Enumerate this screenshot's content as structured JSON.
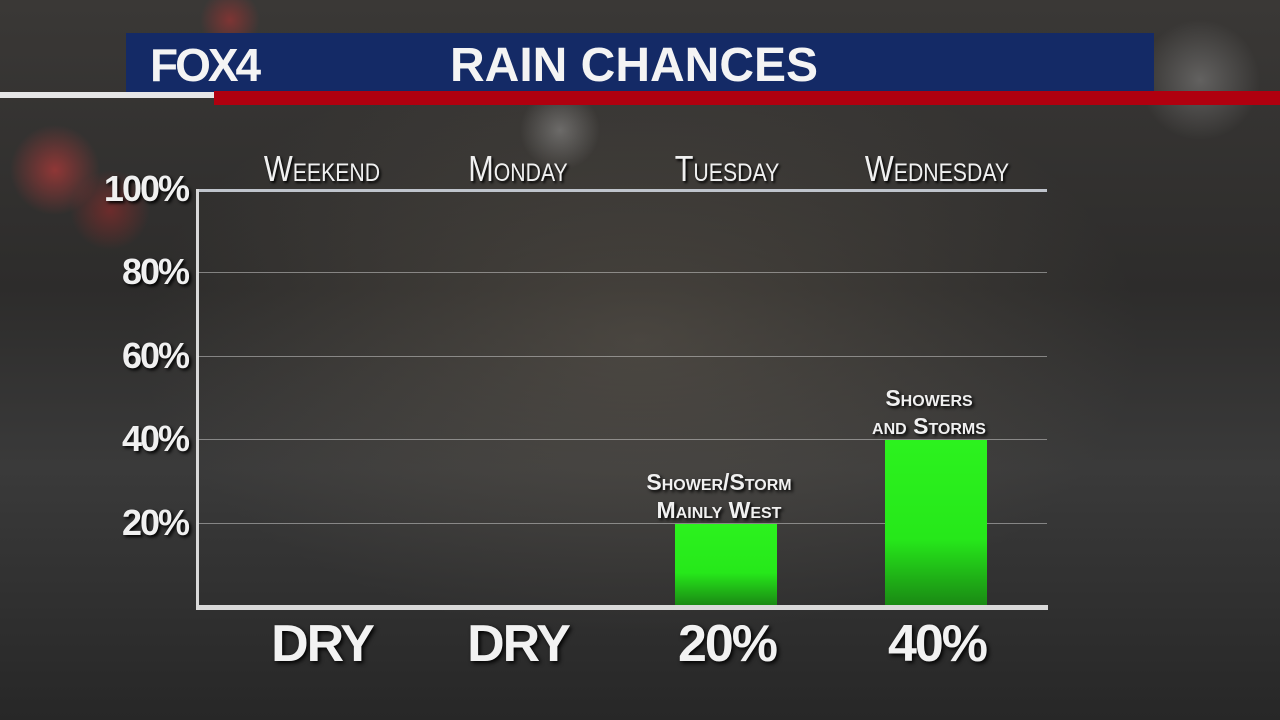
{
  "header": {
    "logo": "FOX4",
    "title": "RAIN CHANCES"
  },
  "colors": {
    "banner": "#142a66",
    "accent_red": "#b0000f",
    "bar": "#2cf21e"
  },
  "chart_data": {
    "type": "bar",
    "title": "RAIN CHANCES",
    "categories": [
      "Weekend",
      "Monday",
      "Tuesday",
      "Wednesday"
    ],
    "values": [
      0,
      0,
      20,
      40
    ],
    "value_labels": [
      "DRY",
      "DRY",
      "20%",
      "40%"
    ],
    "annotations": [
      "",
      "",
      "Shower/Storm\nMainly West",
      "Showers\nand Storms"
    ],
    "ylim": [
      0,
      100
    ],
    "yticks": [
      "20%",
      "40%",
      "60%",
      "80%",
      "100%"
    ],
    "ytick_values": [
      20,
      40,
      60,
      80,
      100
    ],
    "grid": true,
    "xlabel": "",
    "ylabel": ""
  }
}
